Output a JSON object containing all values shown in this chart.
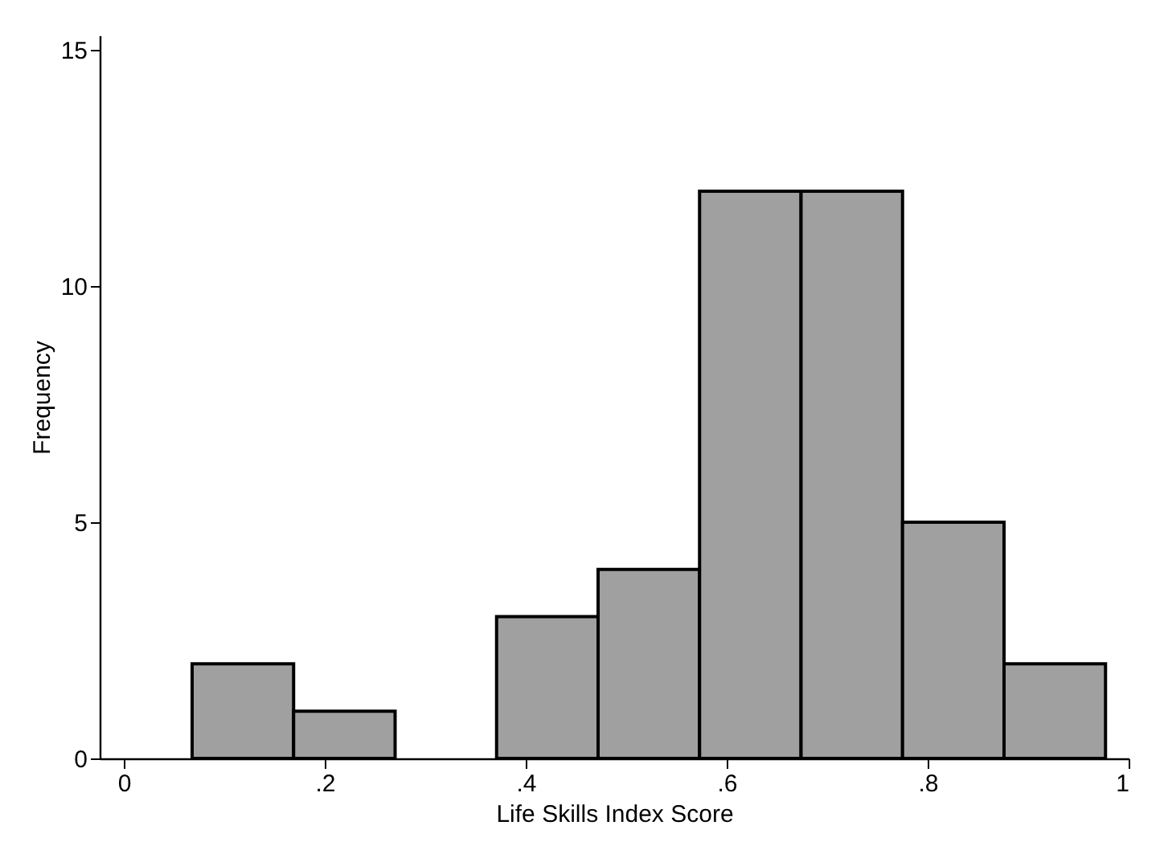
{
  "chart_data": {
    "type": "histogram",
    "xlabel": "Life Skills Index Score",
    "ylabel": "Frequency",
    "bins": [
      0.068,
      0.169,
      0.27,
      0.371,
      0.472,
      0.573,
      0.674,
      0.775,
      0.876,
      0.977
    ],
    "values": [
      2,
      1,
      0,
      3,
      4,
      12,
      12,
      5,
      2
    ],
    "color": "#a0a0a0",
    "xlim": [
      -0.024,
      1.0
    ],
    "ylim": [
      0,
      15.3
    ],
    "xticks": [
      0,
      {
        "value": 0.2,
        "label": ".2"
      },
      {
        "value": 0.4,
        "label": ".4"
      },
      {
        "value": 0.6,
        "label": ".6"
      },
      {
        "value": 0.8,
        "label": ".8"
      },
      1
    ],
    "yticks": [
      0,
      5,
      10,
      15
    ]
  }
}
